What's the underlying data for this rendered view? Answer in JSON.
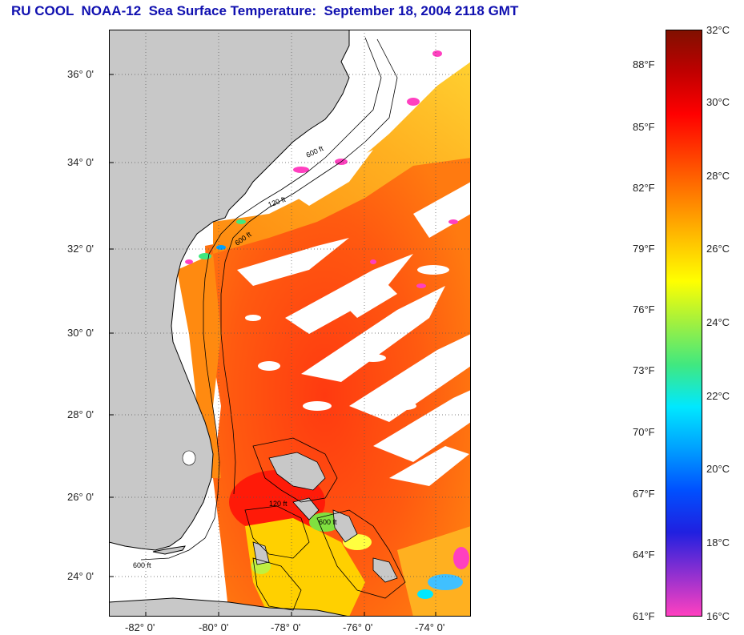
{
  "title": "RU COOL  NOAA-12  Sea Surface Temperature:  September 18, 2004 2118 GMT",
  "map": {
    "land_color": "#c8c8c8",
    "cloud_color": "#ffffff",
    "lat_labels": [
      "36° 0'",
      "34° 0'",
      "32° 0'",
      "30° 0'",
      "28° 0'",
      "26° 0'",
      "24° 0'"
    ],
    "lon_labels": [
      "-82° 0'",
      "-80° 0'",
      "-78° 0'",
      "-76° 0'",
      "-74° 0'"
    ],
    "contour_labels": [
      "600 ft",
      "120 ft"
    ]
  },
  "colorbar": {
    "fahrenheit_labels": [
      "88°F",
      "85°F",
      "82°F",
      "79°F",
      "76°F",
      "73°F",
      "70°F",
      "67°F",
      "64°F",
      "61°F"
    ],
    "celsius_labels": [
      "32°C",
      "30°C",
      "28°C",
      "26°C",
      "24°C",
      "22°C",
      "20°C",
      "18°C",
      "16°C"
    ],
    "min_c": 16,
    "max_c": 32,
    "stops": [
      "#ff40c0",
      "#9030d0",
      "#2020e0",
      "#0050ff",
      "#00a0ff",
      "#00e8ff",
      "#40e880",
      "#a0f040",
      "#ffff00",
      "#ffc000",
      "#ff8000",
      "#ff4000",
      "#ff0000",
      "#c00000",
      "#801000"
    ]
  }
}
